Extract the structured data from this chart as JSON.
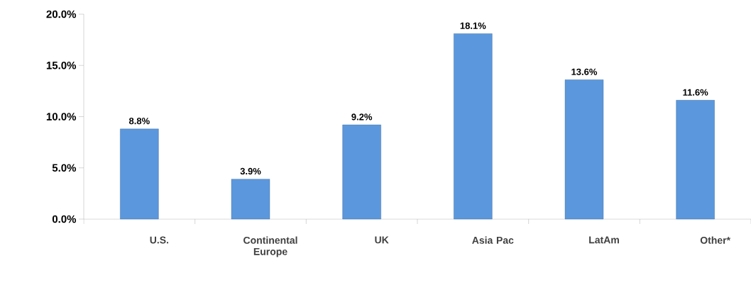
{
  "chart_data": {
    "type": "bar",
    "categories": [
      "U.S.",
      "Continental Europe",
      "UK",
      "Asia Pac",
      "LatAm",
      "Other*"
    ],
    "values": [
      8.8,
      3.9,
      9.2,
      18.1,
      13.6,
      11.6
    ],
    "value_labels": [
      "8.8%",
      "3.9%",
      "9.2%",
      "18.1%",
      "13.6%",
      "11.6%"
    ],
    "color": "#5b97dc",
    "ylim": [
      0,
      20
    ],
    "yticks": [
      {
        "value": 0,
        "label": "0.0%"
      },
      {
        "value": 5,
        "label": "5.0%"
      },
      {
        "value": 10,
        "label": "10.0%"
      },
      {
        "value": 15,
        "label": "15.0%"
      },
      {
        "value": 20,
        "label": "20.0%"
      }
    ],
    "grid": false
  }
}
